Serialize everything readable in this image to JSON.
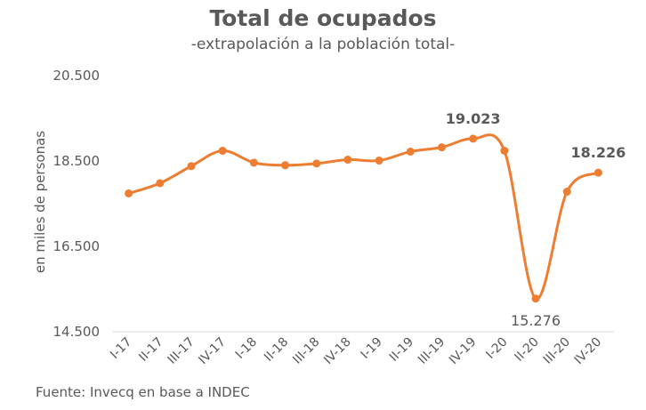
{
  "chart_data": {
    "type": "line",
    "title": "Total de ocupados",
    "subtitle": "-extrapolación a la población total-",
    "xlabel": "",
    "ylabel": "en miles de personas",
    "ylim": [
      14500,
      20500
    ],
    "yticks": [
      14500,
      16500,
      18500,
      20500
    ],
    "ytick_labels": [
      "14.500",
      "16.500",
      "18.500",
      "20.500"
    ],
    "grid": false,
    "categories": [
      "I-17",
      "II-17",
      "III-17",
      "IV-17",
      "I-18",
      "II-18",
      "III-18",
      "IV-18",
      "I-19",
      "II-19",
      "III-19",
      "IV-19",
      "I-20",
      "II-20",
      "III-20",
      "IV-20"
    ],
    "series": [
      {
        "name": "Total de ocupados",
        "color": "#ED7D31",
        "values": [
          17740,
          17980,
          18380,
          18740,
          18460,
          18400,
          18440,
          18530,
          18510,
          18720,
          18820,
          19023,
          18740,
          15276,
          17780,
          18226
        ]
      }
    ],
    "annotations": [
      {
        "index": 11,
        "label": "19.023",
        "position": "above",
        "bold": true
      },
      {
        "index": 13,
        "label": "15.276",
        "position": "below",
        "bold": false
      },
      {
        "index": 15,
        "label": "18.226",
        "position": "above",
        "bold": true
      }
    ]
  },
  "source": "Fuente: Invecq en base a INDEC"
}
